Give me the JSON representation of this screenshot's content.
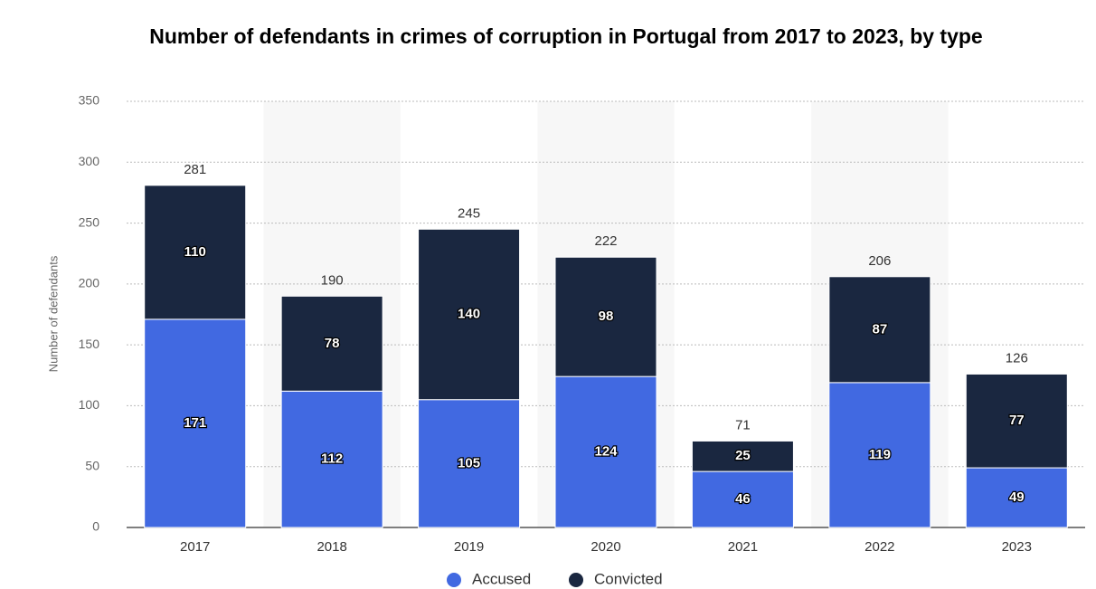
{
  "chart_data": {
    "type": "stacked_bar",
    "title": "Number of defendants in crimes of corruption in Portugal from 2017 to 2023, by type",
    "y_label": "Number of defendants",
    "categories": [
      "2017",
      "2018",
      "2019",
      "2020",
      "2021",
      "2022",
      "2023"
    ],
    "series": [
      {
        "name": "Accused",
        "color": "#4169e1",
        "values": [
          171,
          112,
          105,
          124,
          46,
          119,
          49
        ]
      },
      {
        "name": "Convicted",
        "color": "#1a2740",
        "values": [
          110,
          78,
          140,
          98,
          25,
          87,
          77
        ]
      }
    ],
    "totals": [
      281,
      190,
      245,
      222,
      71,
      206,
      126
    ],
    "ylim": [
      0,
      350
    ],
    "yticks": [
      0,
      50,
      100,
      150,
      200,
      250,
      300,
      350
    ],
    "grid": true,
    "legend": "bottom"
  }
}
